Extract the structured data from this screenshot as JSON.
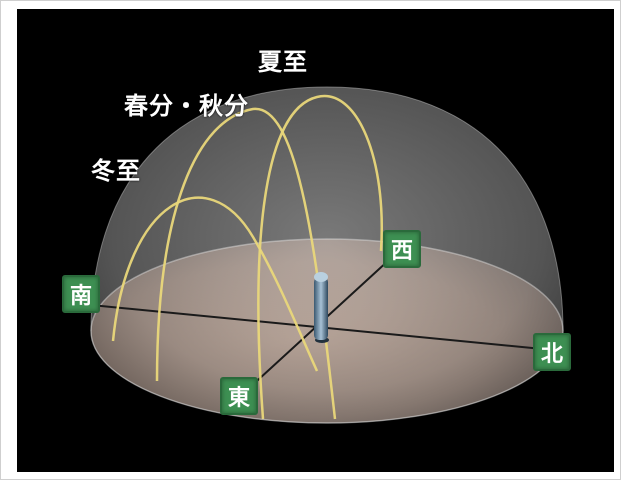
{
  "paths": {
    "summer": "夏至",
    "equinox": "春分・秋分",
    "winter": "冬至"
  },
  "directions": {
    "south": "南",
    "west": "西",
    "north": "北",
    "east": "東"
  },
  "colors": {
    "background": "#000000",
    "sun_path": "#e9d77a",
    "sign_fill": "#3d8f52"
  }
}
